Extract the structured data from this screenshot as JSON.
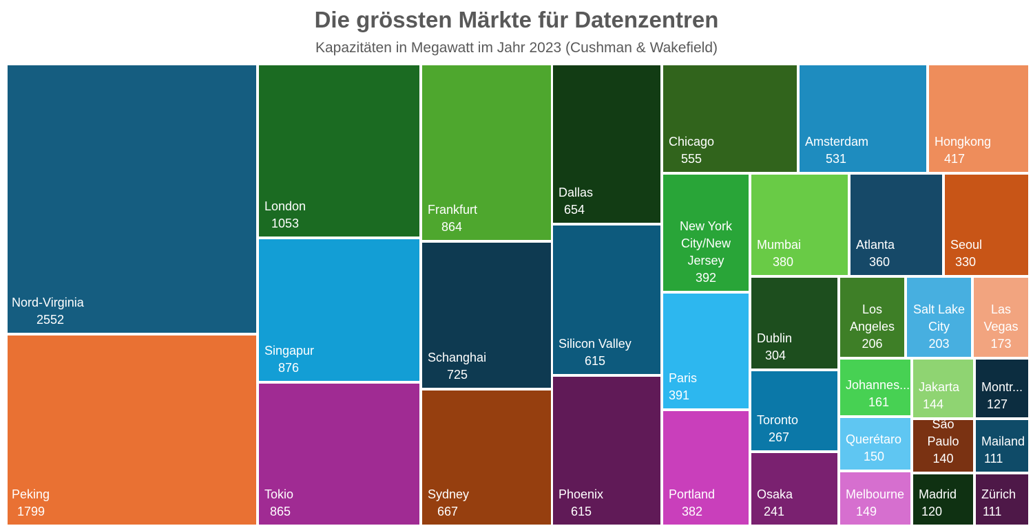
{
  "chart_data": {
    "type": "treemap",
    "title": "Die grössten Märkte für Datenzentren",
    "subtitle": "Kapazitäten in Megawatt im Jahr 2023 (Cushman & Wakefield)",
    "unit": "Megawatt",
    "items": [
      {
        "label": "Nord-Virginia",
        "value": 2552,
        "color": "#155d80"
      },
      {
        "label": "Peking",
        "value": 1799,
        "color": "#e97133"
      },
      {
        "label": "London",
        "value": 1053,
        "color": "#1b6b22"
      },
      {
        "label": "Singapur",
        "value": 876,
        "color": "#139ed5"
      },
      {
        "label": "Tokio",
        "value": 865,
        "color": "#a02b93"
      },
      {
        "label": "Frankfurt",
        "value": 864,
        "color": "#4ea72e"
      },
      {
        "label": "Schanghai",
        "value": 725,
        "color": "#0e3a51"
      },
      {
        "label": "Sydney",
        "value": 667,
        "color": "#963f0f"
      },
      {
        "label": "Dallas",
        "value": 654,
        "color": "#123c14"
      },
      {
        "label": "Silicon Valley",
        "value": 615,
        "color": "#0d5a7d"
      },
      {
        "label": "Phoenix",
        "value": 615,
        "color": "#601a57"
      },
      {
        "label": "Chicago",
        "value": 555,
        "color": "#31641c"
      },
      {
        "label": "Amsterdam",
        "value": 531,
        "color": "#1e8cbf"
      },
      {
        "label": "Hongkong",
        "value": 417,
        "color": "#ee8d5b"
      },
      {
        "label": "New York City/New Jersey",
        "display": "New York\nCity/New\nJersey",
        "value": 392,
        "color": "#29a538"
      },
      {
        "label": "Paris",
        "value": 391,
        "color": "#2db7ef"
      },
      {
        "label": "Portland",
        "value": 382,
        "color": "#c93fbb"
      },
      {
        "label": "Mumbai",
        "value": 380,
        "color": "#69cb46"
      },
      {
        "label": "Atlanta",
        "value": 360,
        "color": "#164968"
      },
      {
        "label": "Seoul",
        "value": 330,
        "color": "#c85517"
      },
      {
        "label": "Dublin",
        "value": 304,
        "color": "#1d4e1e"
      },
      {
        "label": "Toronto",
        "value": 267,
        "color": "#0b78a8"
      },
      {
        "label": "Osaka",
        "value": 241,
        "color": "#7a2170"
      },
      {
        "label": "Los Angeles",
        "display": "Los\nAngeles",
        "value": 206,
        "color": "#3e7f27"
      },
      {
        "label": "Salt Lake City",
        "display": "Salt Lake\nCity",
        "value": 203,
        "color": "#47afe0"
      },
      {
        "label": "Las Vegas",
        "display": "Las\nVegas",
        "value": 173,
        "color": "#f2a47f"
      },
      {
        "label": "Johannes...",
        "value": 161,
        "color": "#47d153"
      },
      {
        "label": "Jakarta",
        "value": 144,
        "color": "#8fd472"
      },
      {
        "label": "Montr...",
        "value": 127,
        "color": "#0c2d40"
      },
      {
        "label": "Querétaro",
        "value": 150,
        "color": "#5fc6f2"
      },
      {
        "label": "São Paulo",
        "display": "São\nPaulo",
        "value": 140,
        "color": "#7a3212"
      },
      {
        "label": "Mailand",
        "value": 111,
        "color": "#0f4b68"
      },
      {
        "label": "Melbourne",
        "value": 149,
        "color": "#d66fcf"
      },
      {
        "label": "Madrid",
        "value": 120,
        "color": "#0f3112"
      },
      {
        "label": "Zürich",
        "value": 111,
        "color": "#4e1848"
      }
    ]
  }
}
